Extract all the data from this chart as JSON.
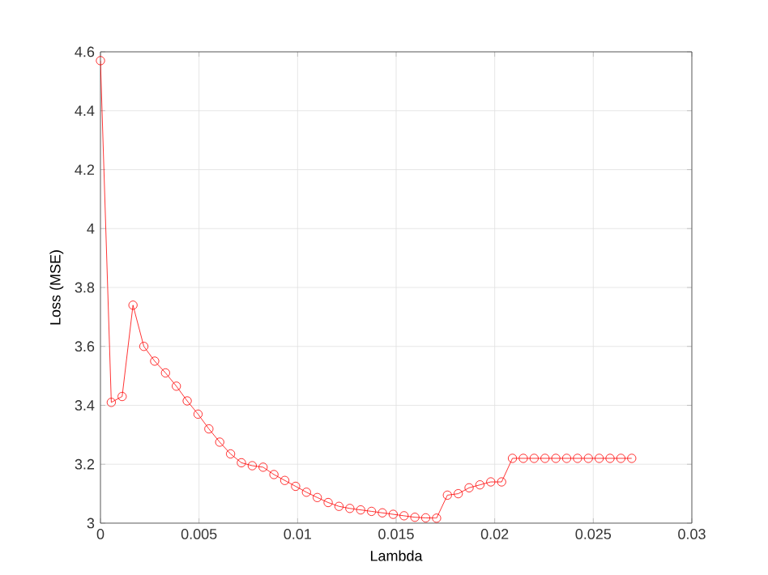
{
  "chart_data": {
    "type": "line",
    "xlabel": "Lambda",
    "ylabel": "Loss (MSE)",
    "x": [
      0,
      0.00055,
      0.0011,
      0.00165,
      0.0022,
      0.00275,
      0.0033,
      0.00385,
      0.0044,
      0.00495,
      0.0055,
      0.00605,
      0.0066,
      0.00715,
      0.0077,
      0.00825,
      0.0088,
      0.00935,
      0.0099,
      0.01045,
      0.011,
      0.01155,
      0.0121,
      0.01265,
      0.0132,
      0.01375,
      0.0143,
      0.01485,
      0.0154,
      0.01595,
      0.0165,
      0.01705,
      0.0176,
      0.01815,
      0.0187,
      0.01925,
      0.0198,
      0.02035,
      0.0209,
      0.02145,
      0.022,
      0.02255,
      0.0231,
      0.02365,
      0.0242,
      0.02475,
      0.0253,
      0.02585,
      0.0264,
      0.02695
    ],
    "series": [
      {
        "color": "#ff0000",
        "values": [
          4.57,
          3.41,
          3.43,
          3.74,
          3.6,
          3.55,
          3.51,
          3.465,
          3.415,
          3.37,
          3.32,
          3.275,
          3.235,
          3.205,
          3.195,
          3.19,
          3.165,
          3.145,
          3.125,
          3.105,
          3.087,
          3.07,
          3.057,
          3.05,
          3.045,
          3.04,
          3.035,
          3.03,
          3.025,
          3.02,
          3.018,
          3.017,
          3.095,
          3.1,
          3.12,
          3.13,
          3.14,
          3.14,
          3.22,
          3.22,
          3.22,
          3.22,
          3.22,
          3.22,
          3.22,
          3.22,
          3.22,
          3.22,
          3.22,
          3.22
        ]
      }
    ],
    "xlim": [
      0,
      0.03
    ],
    "ylim": [
      3,
      4.6
    ],
    "xticks": [
      0,
      0.005,
      0.01,
      0.015,
      0.02,
      0.025,
      0.03
    ],
    "yticks": [
      3,
      3.2,
      3.4,
      3.6,
      3.8,
      4,
      4.2,
      4.4,
      4.6
    ],
    "grid": true,
    "marker": "circle",
    "line_style": "solid"
  }
}
